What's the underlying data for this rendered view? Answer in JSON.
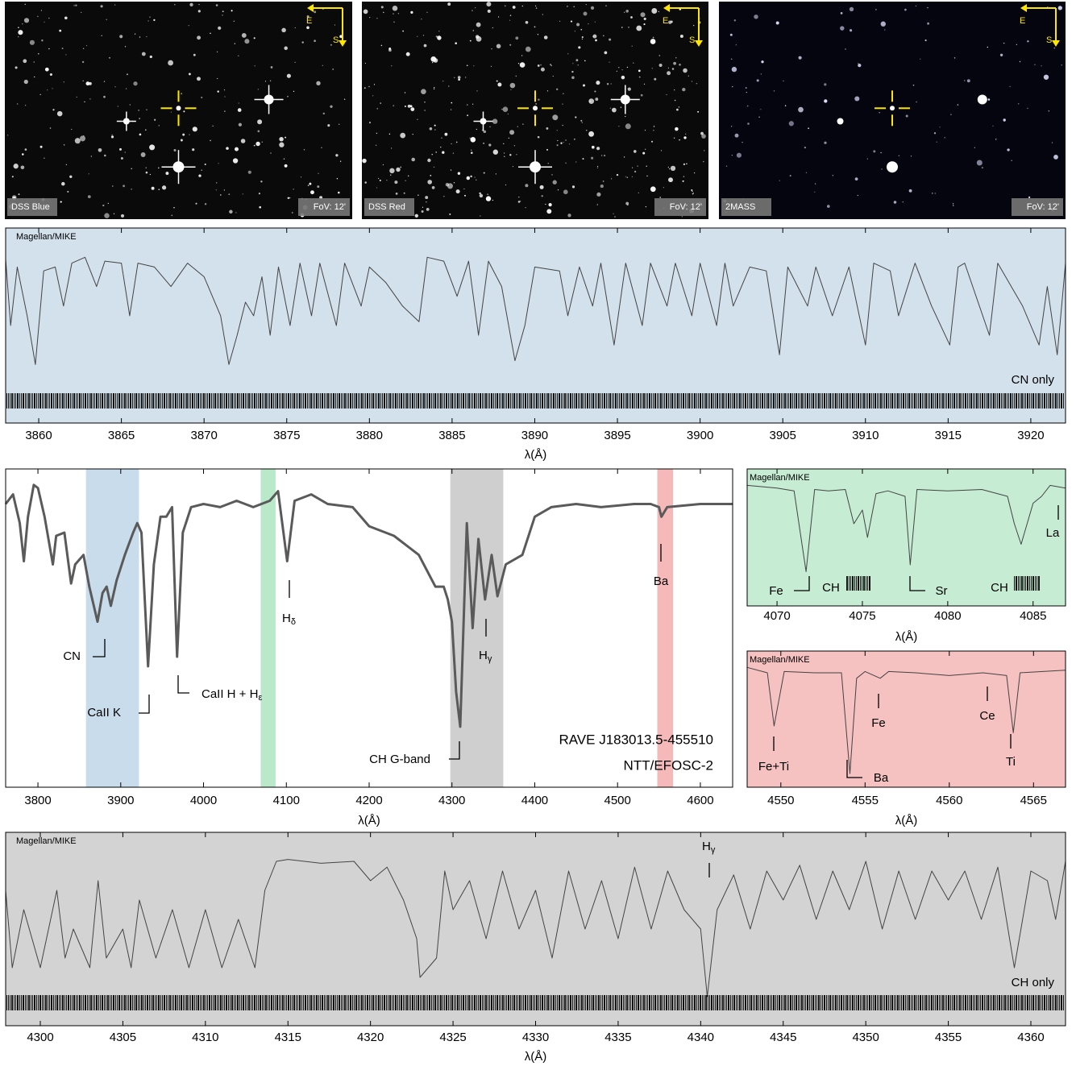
{
  "images": [
    {
      "label": "DSS Blue",
      "fov": "FoV: 12'",
      "east": "E",
      "south": "S"
    },
    {
      "label": "DSS Red",
      "fov": "FoV: 12'",
      "east": "E",
      "south": "S"
    },
    {
      "label": "2MASS",
      "fov": "FoV: 12'",
      "east": "E",
      "south": "S"
    }
  ],
  "chart_data": [
    {
      "type": "line",
      "instrument": "Magellan/MIKE",
      "note": "CN only",
      "xlabel": "λ(Å)",
      "background": "#d2e1ec",
      "color": "#444444",
      "xlim": [
        3858,
        3922.1
      ],
      "xticks": [
        3860,
        3865,
        3870,
        3875,
        3880,
        3885,
        3890,
        3895,
        3900,
        3905,
        3910,
        3915,
        3920
      ],
      "ylim": [
        0,
        1
      ],
      "x": [
        3858,
        3858.3,
        3858.7,
        3859.3,
        3859.8,
        3860.3,
        3861,
        3861.5,
        3862,
        3862.8,
        3863.5,
        3864,
        3865,
        3865.5,
        3866,
        3867,
        3868,
        3869,
        3870,
        3871,
        3871.5,
        3872,
        3872.5,
        3873,
        3873.5,
        3874,
        3874.5,
        3875.2,
        3875.8,
        3876.5,
        3877,
        3878,
        3878.5,
        3879.5,
        3880,
        3881,
        3882,
        3883,
        3883.5,
        3884.5,
        3885.3,
        3886,
        3886.6,
        3887.2,
        3888,
        3888.8,
        3889.4,
        3890,
        3891.5,
        3892,
        3892.7,
        3893.5,
        3894,
        3894.8,
        3895.5,
        3896.5,
        3897,
        3898,
        3898.5,
        3899.5,
        3900,
        3901,
        3901.5,
        3902,
        3903,
        3904,
        3904.8,
        3905.3,
        3906.5,
        3907,
        3908,
        3909,
        3910,
        3910.5,
        3911.5,
        3912,
        3913,
        3914,
        3915.1,
        3915.6,
        3916,
        3917.5,
        3918,
        3919.5,
        3920.5,
        3921,
        3921.6,
        3922.1
      ],
      "values": [
        0.84,
        0.5,
        0.8,
        0.55,
        0.3,
        0.78,
        0.8,
        0.6,
        0.82,
        0.85,
        0.7,
        0.83,
        0.82,
        0.55,
        0.82,
        0.8,
        0.7,
        0.82,
        0.75,
        0.55,
        0.3,
        0.45,
        0.62,
        0.55,
        0.75,
        0.45,
        0.8,
        0.5,
        0.82,
        0.55,
        0.82,
        0.5,
        0.82,
        0.6,
        0.8,
        0.72,
        0.6,
        0.52,
        0.85,
        0.83,
        0.65,
        0.83,
        0.45,
        0.83,
        0.7,
        0.32,
        0.5,
        0.8,
        0.78,
        0.55,
        0.8,
        0.6,
        0.82,
        0.4,
        0.82,
        0.5,
        0.82,
        0.6,
        0.82,
        0.55,
        0.82,
        0.5,
        0.82,
        0.6,
        0.8,
        0.78,
        0.35,
        0.8,
        0.6,
        0.8,
        0.55,
        0.8,
        0.4,
        0.82,
        0.78,
        0.55,
        0.82,
        0.6,
        0.4,
        0.8,
        0.82,
        0.45,
        0.82,
        0.6,
        0.4,
        0.7,
        0.35,
        0.82
      ]
    },
    {
      "type": "line",
      "object": "RAVE J183013.5-455510",
      "instrument": "NTT/EFOSC-2",
      "xlabel": "λ(Å)",
      "background": "#ffffff",
      "color": "#5a5a5a",
      "xlim": [
        3761,
        4639
      ],
      "xticks": [
        3800,
        3900,
        4000,
        4100,
        4200,
        4300,
        4400,
        4500,
        4600
      ],
      "ylim": [
        0,
        1
      ],
      "bands": [
        {
          "range": [
            3858,
            3922
          ],
          "color": "#c9dceb"
        },
        {
          "range": [
            4069,
            4087
          ],
          "color": "#b9e9c9"
        },
        {
          "range": [
            4298,
            4362
          ],
          "color": "#cfcfcf"
        },
        {
          "range": [
            4548,
            4567
          ],
          "color": "#f5b9b9"
        }
      ],
      "annotations": [
        {
          "text": "CN"
        },
        {
          "text": "CaII K"
        },
        {
          "text": "CaII H + H",
          "sub": "ε"
        },
        {
          "text": "H",
          "sub": "δ"
        },
        {
          "text": "H",
          "sub": "γ"
        },
        {
          "text": "CH G-band"
        },
        {
          "text": "Ba"
        }
      ],
      "x": [
        3761,
        3770,
        3778,
        3783,
        3788,
        3795,
        3800,
        3808,
        3818,
        3822,
        3832,
        3840,
        3845,
        3855,
        3862,
        3872,
        3878,
        3883,
        3888,
        3895,
        3905,
        3915,
        3920,
        3925,
        3933,
        3940,
        3948,
        3955,
        3962,
        3968,
        3975,
        3985,
        4000,
        4020,
        4040,
        4060,
        4080,
        4090,
        4101,
        4110,
        4130,
        4150,
        4180,
        4200,
        4230,
        4260,
        4280,
        4290,
        4295,
        4300,
        4305,
        4310,
        4318,
        4325,
        4332,
        4340,
        4348,
        4355,
        4365,
        4385,
        4400,
        4420,
        4450,
        4480,
        4520,
        4540,
        4550,
        4553,
        4560,
        4600,
        4639
      ],
      "values": [
        0.89,
        0.92,
        0.83,
        0.71,
        0.85,
        0.95,
        0.94,
        0.85,
        0.7,
        0.79,
        0.8,
        0.64,
        0.7,
        0.73,
        0.63,
        0.52,
        0.61,
        0.63,
        0.57,
        0.65,
        0.73,
        0.8,
        0.83,
        0.8,
        0.38,
        0.7,
        0.85,
        0.85,
        0.88,
        0.41,
        0.8,
        0.88,
        0.89,
        0.88,
        0.9,
        0.88,
        0.9,
        0.93,
        0.71,
        0.9,
        0.92,
        0.89,
        0.88,
        0.82,
        0.79,
        0.73,
        0.63,
        0.63,
        0.59,
        0.52,
        0.3,
        0.19,
        0.83,
        0.5,
        0.78,
        0.59,
        0.73,
        0.6,
        0.7,
        0.73,
        0.85,
        0.88,
        0.89,
        0.88,
        0.89,
        0.89,
        0.88,
        0.85,
        0.88,
        0.89,
        0.89
      ]
    },
    {
      "type": "line",
      "instrument": "Magellan/MIKE",
      "xlabel": "λ(Å)",
      "background": "#c6ecd3",
      "color": "#444444",
      "xlim": [
        4068.25,
        4086.9
      ],
      "xticks": [
        4070,
        4075,
        4080,
        4085
      ],
      "ylim": [
        0,
        1
      ],
      "annotations": [
        {
          "text": "Fe"
        },
        {
          "text": "CH"
        },
        {
          "text": "Sr"
        },
        {
          "text": "CH"
        },
        {
          "text": "La"
        }
      ],
      "x": [
        4068.25,
        4070,
        4071,
        4071.7,
        4072.2,
        4073,
        4074,
        4074.5,
        4075,
        4075.3,
        4075.8,
        4076.5,
        4077.5,
        4077.8,
        4078.2,
        4080,
        4082,
        4083.5,
        4083.9,
        4084.3,
        4085,
        4085.5,
        4086,
        4086.9
      ],
      "values": [
        0.88,
        0.86,
        0.84,
        0.25,
        0.85,
        0.84,
        0.85,
        0.6,
        0.7,
        0.5,
        0.82,
        0.84,
        0.8,
        0.3,
        0.85,
        0.84,
        0.85,
        0.8,
        0.6,
        0.45,
        0.75,
        0.8,
        0.88,
        0.86
      ]
    },
    {
      "type": "line",
      "instrument": "Magellan/MIKE",
      "xlabel": "λ(Å)",
      "background": "#f6c1c1",
      "color": "#444444",
      "xlim": [
        4548,
        4566.9
      ],
      "xticks": [
        4550,
        4555,
        4560,
        4565
      ],
      "ylim": [
        0,
        1
      ],
      "annotations": [
        {
          "text": "Fe+Ti"
        },
        {
          "text": "Ba"
        },
        {
          "text": "Fe"
        },
        {
          "text": "Ce"
        },
        {
          "text": "Ti"
        }
      ],
      "x": [
        4548,
        4549.2,
        4549.6,
        4550.2,
        4552,
        4553.6,
        4554.1,
        4554.5,
        4555,
        4555.9,
        4556.4,
        4558,
        4560,
        4562,
        4563.4,
        4563.8,
        4564.2,
        4566.9
      ],
      "values": [
        0.88,
        0.84,
        0.45,
        0.85,
        0.84,
        0.84,
        0.1,
        0.8,
        0.85,
        0.8,
        0.85,
        0.84,
        0.82,
        0.84,
        0.82,
        0.4,
        0.84,
        0.86
      ]
    },
    {
      "type": "line",
      "instrument": "Magellan/MIKE",
      "note": "CH only",
      "xlabel": "λ(Å)",
      "background": "#d3d3d3",
      "color": "#444444",
      "xlim": [
        4297.9,
        4362.1
      ],
      "xticks": [
        4300,
        4305,
        4310,
        4315,
        4320,
        4325,
        4330,
        4335,
        4340,
        4345,
        4350,
        4355,
        4360
      ],
      "ylim": [
        0,
        1
      ],
      "annotations": [
        {
          "text": "H",
          "sub": "γ"
        }
      ],
      "x": [
        4297.9,
        4298.3,
        4299,
        4300,
        4301,
        4301.5,
        4302,
        4303,
        4303.5,
        4304,
        4305,
        4305.5,
        4306,
        4307,
        4308,
        4309,
        4310,
        4311,
        4312,
        4313,
        4313.6,
        4314.3,
        4315,
        4317,
        4319,
        4320,
        4321,
        4322,
        4322.8,
        4323,
        4324,
        4324.5,
        4325,
        4326,
        4327,
        4328,
        4329,
        4330,
        4331,
        4332,
        4333,
        4334,
        4335,
        4336,
        4337,
        4338,
        4339,
        4340,
        4340.4,
        4341,
        4342,
        4343,
        4344,
        4345,
        4346,
        4347,
        4348,
        4349,
        4350,
        4351,
        4352,
        4353,
        4354,
        4355,
        4356,
        4357,
        4358,
        4359,
        4360,
        4361,
        4361.5,
        4362.1
      ],
      "values": [
        0.7,
        0.3,
        0.6,
        0.3,
        0.7,
        0.35,
        0.5,
        0.3,
        0.75,
        0.35,
        0.5,
        0.3,
        0.65,
        0.35,
        0.6,
        0.3,
        0.6,
        0.3,
        0.55,
        0.3,
        0.7,
        0.85,
        0.86,
        0.84,
        0.85,
        0.75,
        0.82,
        0.65,
        0.45,
        0.25,
        0.35,
        0.8,
        0.6,
        0.75,
        0.45,
        0.8,
        0.5,
        0.7,
        0.35,
        0.8,
        0.5,
        0.75,
        0.45,
        0.82,
        0.5,
        0.8,
        0.6,
        0.5,
        0.15,
        0.6,
        0.78,
        0.5,
        0.8,
        0.65,
        0.83,
        0.55,
        0.8,
        0.6,
        0.85,
        0.5,
        0.8,
        0.55,
        0.8,
        0.65,
        0.8,
        0.55,
        0.82,
        0.3,
        0.8,
        0.75,
        0.55,
        0.85
      ]
    }
  ]
}
